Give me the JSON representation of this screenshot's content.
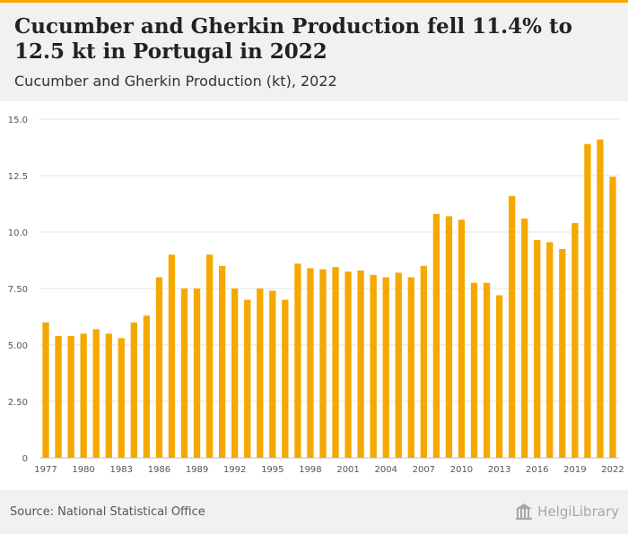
{
  "header": {
    "title": "Cucumber and Gherkin Production fell 11.4% to 12.5 kt in Portugal in 2022",
    "subtitle": "Cucumber and Gherkin Production (kt), 2022"
  },
  "footer": {
    "source": "Source: National Statistical Office",
    "logo_text": "HelgiLibrary"
  },
  "colors": {
    "bar": "#f5a800",
    "accent": "#f5a800",
    "grid": "#e3e3e3",
    "axis_text": "#555555"
  },
  "chart_data": {
    "type": "bar",
    "title": "",
    "xlabel": "",
    "ylabel": "",
    "ylim": [
      0,
      15
    ],
    "y_ticks": [
      0,
      2.5,
      5,
      7.5,
      10,
      12.5,
      15
    ],
    "y_tick_labels": [
      "0",
      "2.50",
      "5.00",
      "7.50",
      "10.0",
      "12.5",
      "15.0"
    ],
    "x_tick_labels": [
      "1977",
      "1980",
      "1983",
      "1986",
      "1989",
      "1992",
      "1995",
      "1998",
      "2001",
      "2004",
      "2007",
      "2010",
      "2013",
      "2016",
      "2019",
      "2022"
    ],
    "grid": true,
    "categories": [
      "1977",
      "1978",
      "1979",
      "1980",
      "1981",
      "1982",
      "1983",
      "1984",
      "1985",
      "1986",
      "1987",
      "1988",
      "1989",
      "1990",
      "1991",
      "1992",
      "1993",
      "1994",
      "1995",
      "1996",
      "1997",
      "1998",
      "1999",
      "2000",
      "2001",
      "2002",
      "2003",
      "2004",
      "2005",
      "2006",
      "2007",
      "2008",
      "2009",
      "2010",
      "2011",
      "2012",
      "2013",
      "2014",
      "2015",
      "2016",
      "2017",
      "2018",
      "2019",
      "2020",
      "2021",
      "2022"
    ],
    "values": [
      6.0,
      5.4,
      5.4,
      5.5,
      5.7,
      5.5,
      5.3,
      6.0,
      6.3,
      8.0,
      9.0,
      7.5,
      7.5,
      9.0,
      8.5,
      7.5,
      7.0,
      7.5,
      7.4,
      7.0,
      8.6,
      8.4,
      8.35,
      8.45,
      8.25,
      8.3,
      8.1,
      8.0,
      8.2,
      8.0,
      8.5,
      10.8,
      10.7,
      10.55,
      7.75,
      7.75,
      7.2,
      11.6,
      10.6,
      9.65,
      9.55,
      9.25,
      10.4,
      13.9,
      14.1,
      12.45
    ]
  }
}
